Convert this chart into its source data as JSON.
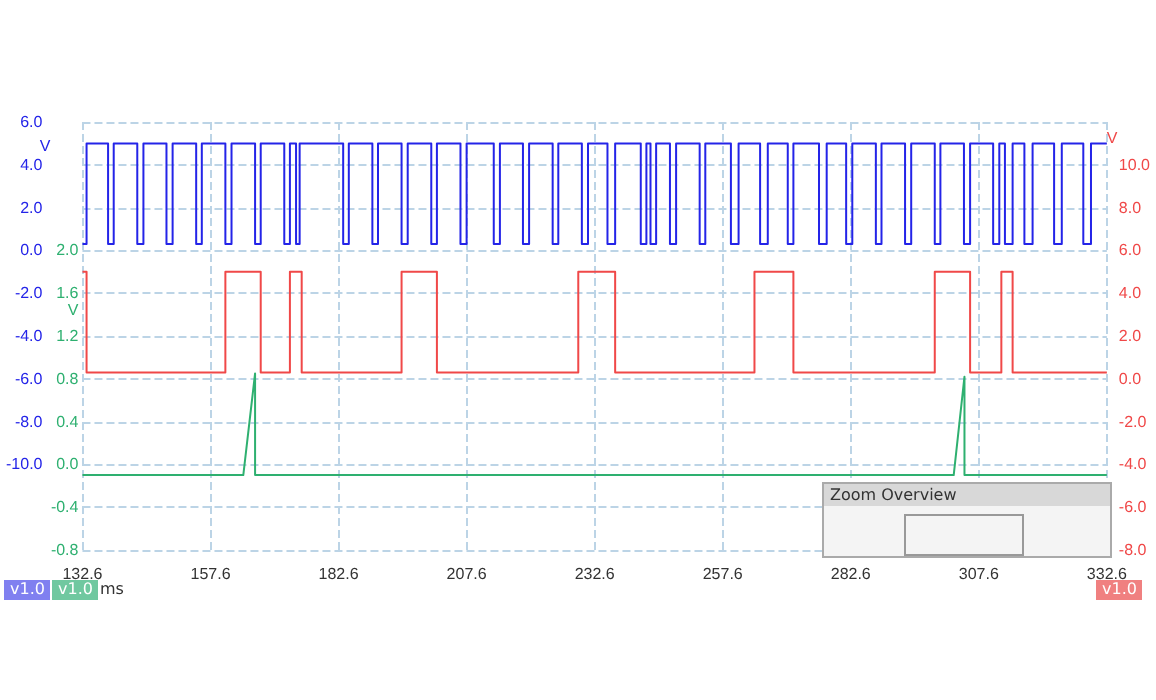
{
  "chart_data": {
    "type": "line",
    "xlabel": "ms",
    "ylabel": "V",
    "y2label": "V",
    "y3label": "V",
    "xlim": [
      132.6,
      332.6
    ],
    "xticks": [
      132.6,
      157.6,
      182.6,
      207.6,
      232.6,
      257.6,
      282.6,
      307.6,
      332.6
    ],
    "ylim": [
      -14,
      6
    ],
    "yticks": [
      {
        "value": -14,
        "label": null
      },
      {
        "value": -12,
        "label": null
      },
      {
        "value": -10,
        "label": "-10.0"
      },
      {
        "value": -8,
        "label": "-8.0"
      },
      {
        "value": -6,
        "label": "-6.0"
      },
      {
        "value": -4,
        "label": "-4.0"
      },
      {
        "value": -2,
        "label": "-2.0"
      },
      {
        "value": 0,
        "label": "0.0"
      },
      {
        "value": 2,
        "label": "2.0"
      },
      {
        "value": 4,
        "label": "4.0"
      },
      {
        "value": 6,
        "label": "6.0"
      }
    ],
    "y2lim": [
      -8,
      12
    ],
    "y2ticks": [
      {
        "value": -8,
        "label": "-8.0"
      },
      {
        "value": -6,
        "label": "-6.0"
      },
      {
        "value": -4,
        "label": "-4.0"
      },
      {
        "value": -2,
        "label": "-2.0"
      },
      {
        "value": 0,
        "label": "0.0"
      },
      {
        "value": 2,
        "label": "2.0"
      },
      {
        "value": 4,
        "label": "4.0"
      },
      {
        "value": 6,
        "label": "6.0"
      },
      {
        "value": 8,
        "label": "8.0"
      },
      {
        "value": 10,
        "label": "10.0"
      },
      {
        "value": 12,
        "label": null
      }
    ],
    "y3lim": [
      -0.8,
      3.2
    ],
    "y3ticks": [
      {
        "value": -0.8,
        "label": "-0.8"
      },
      {
        "value": -0.4,
        "label": "-0.4"
      },
      {
        "value": 0,
        "label": "0.0"
      },
      {
        "value": 0.4,
        "label": "0.4"
      },
      {
        "value": 0.8,
        "label": "0.8"
      },
      {
        "value": 1.2,
        "label": "1.2"
      },
      {
        "value": 1.6,
        "label": "1.6"
      },
      {
        "value": 2.0,
        "label": "2.0"
      },
      {
        "value": 2.4,
        "label": null
      },
      {
        "value": 2.8,
        "label": null
      },
      {
        "value": 3.2,
        "label": null
      }
    ],
    "grid": true,
    "line_style": "solid",
    "marker": "none",
    "annotations": [
      "Zoom Overview",
      "v1.0",
      "v1.0",
      "v1.0"
    ],
    "series": [
      {
        "type": "step",
        "color": "#2424e8",
        "x": [
          132.6,
          133.4,
          137.6,
          138.7,
          143.3,
          144.5,
          149.0,
          150.2,
          154.8,
          155.9,
          160.5,
          161.7,
          166.3,
          167.4,
          172.0,
          173.1,
          174.3,
          175.0,
          183.5,
          184.6,
          189.2,
          190.3,
          194.9,
          196.1,
          200.7,
          201.8,
          206.4,
          207.6,
          212.9,
          214.1,
          218.6,
          219.8,
          224.4,
          225.5,
          230.1,
          231.3,
          235.1,
          236.6,
          241.6,
          242.7,
          243.5,
          244.6,
          247.3,
          248.5,
          253.1,
          254.2,
          259.2,
          260.7,
          264.9,
          266.4,
          270.3,
          271.4,
          276.4,
          277.9,
          281.7,
          282.9,
          287.5,
          288.6,
          293.2,
          294.4,
          299.0,
          300.1,
          304.7,
          305.9,
          310.4,
          311.6,
          312.7,
          314.2,
          316.5,
          318.1,
          322.3,
          323.8,
          328.0,
          329.5,
          332.6
        ],
        "values": [
          0.3,
          5.0,
          0.3,
          5.0,
          0.3,
          5.0,
          0.3,
          5.0,
          0.3,
          5.0,
          0.3,
          5.0,
          0.3,
          5.0,
          0.3,
          5.0,
          0.3,
          5.0,
          0.3,
          5.0,
          0.3,
          5.0,
          0.3,
          5.0,
          0.3,
          5.0,
          0.3,
          5.0,
          0.3,
          5.0,
          0.3,
          5.0,
          0.3,
          5.0,
          0.3,
          5.0,
          0.3,
          5.0,
          0.3,
          5.0,
          0.3,
          5.0,
          0.3,
          5.0,
          0.3,
          5.0,
          0.3,
          5.0,
          0.3,
          5.0,
          0.3,
          5.0,
          0.3,
          5.0,
          0.3,
          5.0,
          0.3,
          5.0,
          0.3,
          5.0,
          0.3,
          5.0,
          0.3,
          5.0,
          0.3,
          5.0,
          0.3,
          5.0,
          0.3,
          5.0,
          0.3,
          5.0,
          0.3,
          5.0,
          5.0
        ]
      },
      {
        "type": "step",
        "axis": "y2",
        "color": "#f04848",
        "x": [
          132.6,
          133.4,
          160.5,
          167.4,
          173.1,
          175.4,
          194.9,
          201.8,
          229.4,
          236.6,
          263.8,
          271.4,
          299.0,
          305.9,
          312.0,
          314.2,
          332.6
        ],
        "values": [
          5.0,
          0.3,
          5.0,
          0.3,
          5.0,
          0.3,
          5.0,
          0.3,
          5.0,
          0.3,
          5.0,
          0.3,
          5.0,
          0.3,
          5.0,
          0.3,
          0.3
        ]
      },
      {
        "axis": "y3",
        "color": "#2eb070",
        "x": [
          132.6,
          164.0,
          166.3,
          166.3,
          302.7,
          304.8,
          304.8,
          332.6
        ],
        "values": [
          -0.1,
          -0.1,
          0.85,
          -0.1,
          -0.1,
          0.82,
          -0.1,
          -0.1
        ]
      }
    ]
  }
}
